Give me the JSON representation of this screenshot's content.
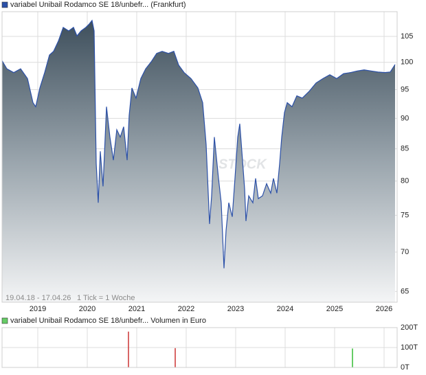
{
  "chart_data": [
    {
      "type": "area",
      "series": [
        {
          "name": "variabel Unibail Rodamco SE 18/unbefr... (Frankfurt)",
          "color": "#2b50a8",
          "values": [
            100.3,
            98.8,
            98.1,
            98.8,
            97.0,
            92.7,
            92.0,
            95.3,
            98.1,
            101.4,
            102.1,
            104.1,
            106.8,
            106.1,
            106.8,
            105.1,
            106.1,
            106.8,
            107.5,
            108.2,
            106.1,
            82.7,
            76.8,
            84.6,
            79.2,
            92.0,
            86.9,
            83.2,
            88.1,
            86.9,
            88.6,
            83.2,
            90.5,
            95.3,
            93.5,
            97.0,
            98.8,
            100.1,
            101.7,
            102.1,
            101.7,
            102.1,
            99.5,
            98.1,
            97.0,
            95.3,
            92.7,
            85.7,
            73.8,
            77.8,
            86.9,
            80.4,
            76.8,
            67.9,
            72.9,
            76.8,
            74.8,
            80.4,
            86.9,
            89.1,
            84.6,
            78.8,
            74.2,
            77.8,
            76.8,
            80.4,
            77.4,
            77.8,
            79.6,
            78.2,
            80.4,
            78.2,
            82.7,
            86.9,
            91.0,
            92.7,
            92.0,
            93.9,
            93.5,
            94.7,
            96.2,
            97.0,
            97.7,
            97.0,
            97.9,
            98.1,
            98.4,
            98.6,
            98.4,
            98.2,
            98.1,
            98.2,
            99.6
          ]
        }
      ],
      "x": [
        2018.278,
        2018.375,
        2018.514,
        2018.653,
        2018.792,
        2018.903,
        2018.958,
        2019.042,
        2019.139,
        2019.236,
        2019.319,
        2019.417,
        2019.514,
        2019.625,
        2019.722,
        2019.792,
        2019.875,
        2019.972,
        2020.042,
        2020.097,
        2020.139,
        2020.181,
        2020.222,
        2020.264,
        2020.319,
        2020.389,
        2020.458,
        2020.528,
        2020.597,
        2020.667,
        2020.736,
        2020.806,
        2020.847,
        2020.903,
        2020.986,
        2021.083,
        2021.181,
        2021.292,
        2021.403,
        2021.514,
        2021.639,
        2021.75,
        2021.847,
        2021.958,
        2022.097,
        2022.236,
        2022.333,
        2022.403,
        2022.472,
        2022.514,
        2022.569,
        2022.653,
        2022.708,
        2022.764,
        2022.806,
        2022.861,
        2022.931,
        2022.986,
        2023.042,
        2023.083,
        2023.125,
        2023.181,
        2023.208,
        2023.264,
        2023.347,
        2023.403,
        2023.458,
        2023.542,
        2023.625,
        2023.708,
        2023.764,
        2023.833,
        2023.889,
        2023.931,
        2023.986,
        2024.042,
        2024.139,
        2024.236,
        2024.347,
        2024.486,
        2024.625,
        2024.764,
        2024.903,
        2025.042,
        2025.181,
        2025.319,
        2025.458,
        2025.597,
        2025.736,
        2025.875,
        2026.014,
        2026.125,
        2026.222
      ],
      "xlim": [
        2018.278,
        2026.264
      ],
      "xticks": [
        2019,
        2020,
        2021,
        2022,
        2023,
        2024,
        2025,
        2026
      ],
      "ylim": [
        63.7,
        110
      ],
      "yticks": [
        65,
        70,
        75,
        80,
        85,
        90,
        95,
        100,
        105
      ],
      "log_scale": true,
      "grid": true,
      "annotations": [
        "19.04.18 - 17.04.26",
        "1 Tick = 1 Woche"
      ],
      "watermark": "STOCK"
    },
    {
      "type": "bar",
      "series": [
        {
          "name": "variabel Unibail Rodamco SE 18/unbefr... Volumen in Euro",
          "color": "#66cc66",
          "values": [
            180000,
            97000,
            95000
          ]
        }
      ],
      "x": [
        2020.833,
        2021.778,
        2025.361
      ],
      "bar_colors": [
        "#cc3333",
        "#cc3333",
        "#33bb33"
      ],
      "xlim": [
        2018.278,
        2026.264
      ],
      "xticks": [
        2019,
        2020,
        2021,
        2022,
        2023,
        2024,
        2025,
        2026
      ],
      "ylim": [
        0,
        200000
      ],
      "yticks": [
        {
          "value": 0,
          "label": "0T"
        },
        {
          "value": 100000,
          "label": "100T"
        },
        {
          "value": 200000,
          "label": "200T"
        }
      ],
      "grid": true
    }
  ]
}
